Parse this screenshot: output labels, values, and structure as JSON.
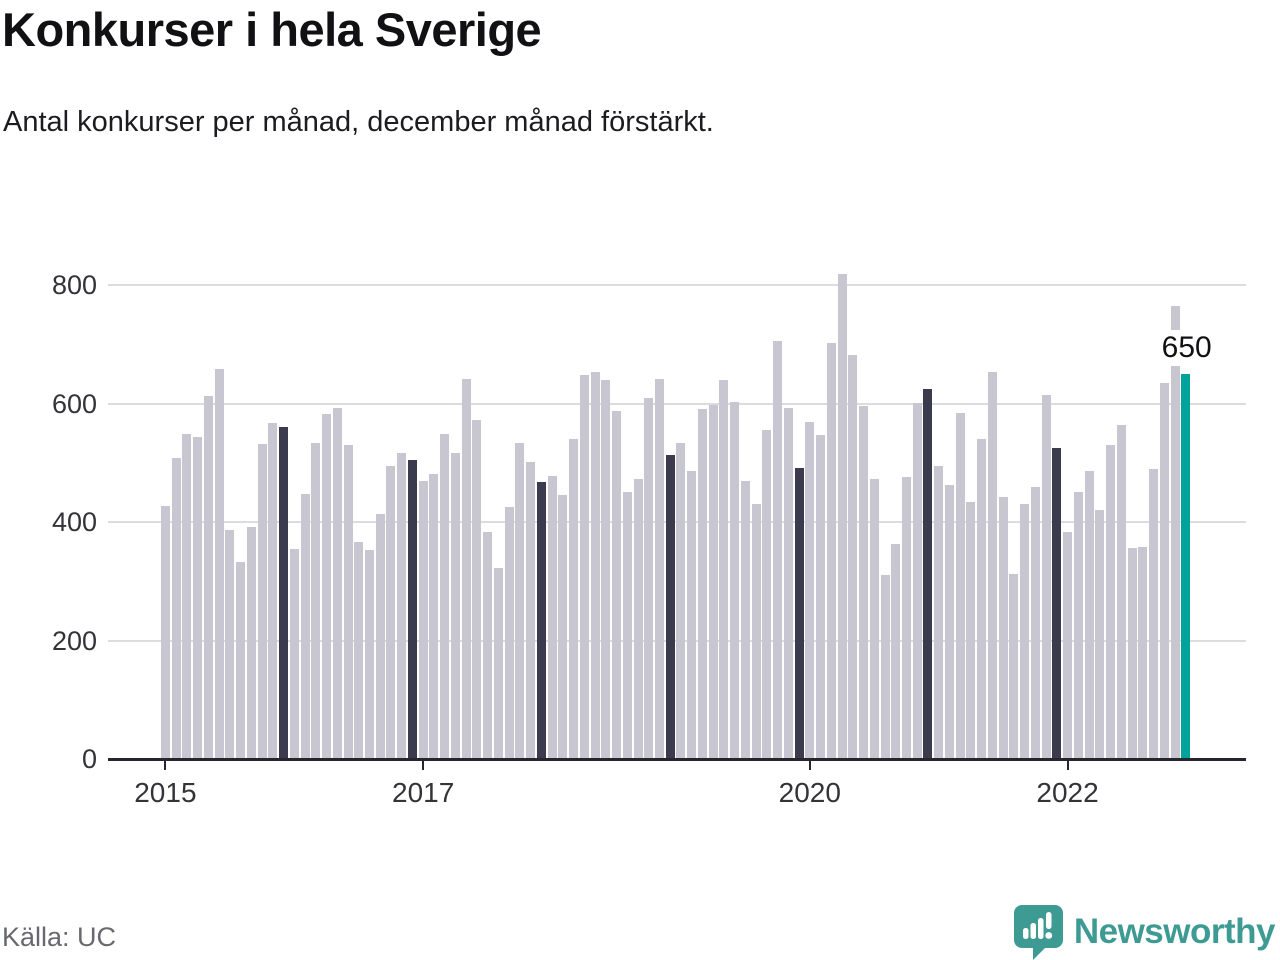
{
  "header": {
    "title": "Konkurser i hela Sverige",
    "subtitle": "Antal konkurser per månad, december månad förstärkt."
  },
  "footer": {
    "source": "Källa: UC",
    "brand_name": "Newsworthy",
    "brand_icon": "newsworthy-speech-bubble-bar-chart-icon"
  },
  "colors": {
    "bar": "#c8c7d1",
    "december_bar": "#3b3b4d",
    "latest_bar": "#00a39c",
    "gridline": "#dcdce0",
    "axis": "#26262e",
    "brand_teal": "#3d9b94"
  },
  "chart_data": {
    "type": "bar",
    "title": "Konkurser i hela Sverige",
    "xlabel": "",
    "ylabel": "Antal konkurser per månad",
    "ylim": [
      0,
      800
    ],
    "yticks": [
      800,
      600,
      400,
      200,
      0
    ],
    "grid": "horizontal",
    "legend": "none",
    "x_start": "2015-01",
    "x_end": "2022-12",
    "xticks": [
      {
        "label": "2015",
        "month_index": 0
      },
      {
        "label": "2017",
        "month_index": 24
      },
      {
        "label": "2020",
        "month_index": 60
      },
      {
        "label": "2022",
        "month_index": 84
      }
    ],
    "year_order": [
      "2015",
      "2016",
      "2017",
      "2018",
      "2019",
      "2020",
      "2021",
      "2022"
    ],
    "values_by_year": {
      "2015": [
        427,
        508,
        549,
        543,
        612,
        659,
        386,
        333,
        391,
        532,
        567,
        561
      ],
      "2016": [
        355,
        447,
        533,
        582,
        593,
        530,
        366,
        353,
        413,
        495,
        517,
        505
      ],
      "2017": [
        470,
        481,
        549,
        516,
        642,
        573,
        383,
        322,
        426,
        534,
        502,
        467
      ],
      "2018": [
        478,
        446,
        541,
        649,
        653,
        639,
        587,
        450,
        473,
        610,
        642,
        513
      ],
      "2019": [
        533,
        486,
        590,
        598,
        639,
        603,
        470,
        430,
        555,
        706,
        592,
        491
      ],
      "2020": [
        569,
        547,
        702,
        818,
        682,
        596,
        472,
        310,
        363,
        476,
        601,
        625
      ],
      "2021": [
        495,
        463,
        584,
        434,
        540,
        654,
        442,
        312,
        431,
        459,
        614,
        525
      ],
      "2022": [
        383,
        450,
        486,
        420,
        530,
        563,
        357,
        358,
        490,
        635,
        765,
        650
      ]
    },
    "december_highlighted": true,
    "annotation": {
      "label": "650",
      "value": 650,
      "month": "2022-12"
    }
  }
}
